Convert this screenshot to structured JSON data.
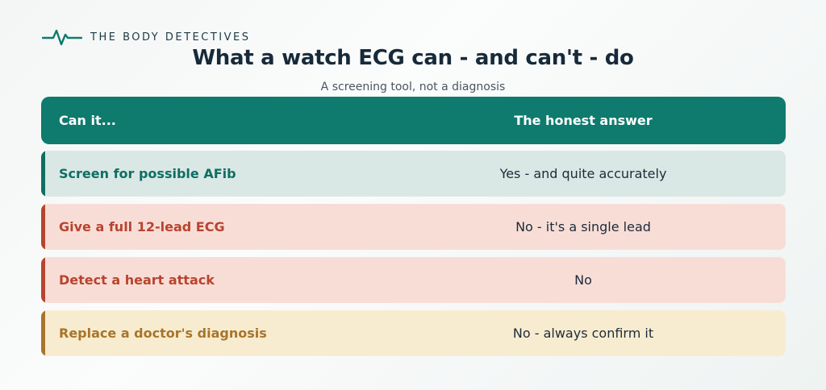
{
  "brand": {
    "name": "THE BODY DETECTIVES",
    "icon": "ecg-pulse-icon",
    "color": "#0f7a6e"
  },
  "title": "What a watch ECG can - and can't - do",
  "subtitle": "A screening tool, not a diagnosis",
  "table": {
    "header_color": "#0f7a6e",
    "headers": {
      "question": "Can it...",
      "answer": "The honest answer"
    },
    "rows": [
      {
        "question": "Screen for possible AFib",
        "answer": "Yes - and quite accurately",
        "accent": "#0f6e63",
        "text_color": "#0f6e63",
        "background": "#d9e8e5"
      },
      {
        "question": "Give a full 12-lead ECG",
        "answer": "No - it's a single lead",
        "accent": "#b8442e",
        "text_color": "#b8442e",
        "background": "#f8ddd7"
      },
      {
        "question": "Detect a heart attack",
        "answer": "No",
        "accent": "#b8442e",
        "text_color": "#b8442e",
        "background": "#f8ddd7"
      },
      {
        "question": "Replace a doctor's diagnosis",
        "answer": "No - always confirm it",
        "accent": "#a8752a",
        "text_color": "#a8752a",
        "background": "#f8ecd0"
      }
    ]
  }
}
